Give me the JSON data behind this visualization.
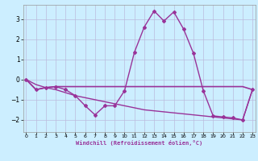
{
  "xlabel": "Windchill (Refroidissement éolien,°C)",
  "x": [
    0,
    1,
    2,
    3,
    4,
    5,
    6,
    7,
    8,
    9,
    10,
    11,
    12,
    13,
    14,
    15,
    16,
    17,
    18,
    19,
    20,
    21,
    22,
    23
  ],
  "y_main": [
    0.0,
    -0.5,
    -0.4,
    -0.35,
    -0.5,
    -0.8,
    -1.3,
    -1.75,
    -1.3,
    -1.3,
    -0.55,
    1.35,
    2.6,
    3.4,
    2.9,
    3.35,
    2.5,
    1.3,
    -0.55,
    -1.8,
    -1.85,
    -1.9,
    -2.0,
    -0.5
  ],
  "y_flat": [
    0.0,
    -0.5,
    -0.4,
    -0.35,
    -0.35,
    -0.35,
    -0.35,
    -0.35,
    -0.35,
    -0.35,
    -0.35,
    -0.35,
    -0.35,
    -0.35,
    -0.35,
    -0.35,
    -0.35,
    -0.35,
    -0.35,
    -0.35,
    -0.35,
    -0.35,
    -0.35,
    -0.5
  ],
  "y_linear": [
    0.0,
    -0.25,
    -0.4,
    -0.5,
    -0.65,
    -0.8,
    -0.9,
    -1.0,
    -1.1,
    -1.2,
    -1.3,
    -1.4,
    -1.5,
    -1.55,
    -1.6,
    -1.65,
    -1.7,
    -1.75,
    -1.8,
    -1.85,
    -1.9,
    -1.95,
    -2.0,
    -0.5
  ],
  "bg_color": "#cceeff",
  "line_color": "#993399",
  "grid_color": "#bbbbdd",
  "ylim": [
    -2.6,
    3.7
  ],
  "yticks": [
    -2,
    -1,
    0,
    1,
    2,
    3
  ],
  "xticks": [
    0,
    1,
    2,
    3,
    4,
    5,
    6,
    7,
    8,
    9,
    10,
    11,
    12,
    13,
    14,
    15,
    16,
    17,
    18,
    19,
    20,
    21,
    22,
    23
  ],
  "xlim": [
    -0.3,
    23.3
  ]
}
